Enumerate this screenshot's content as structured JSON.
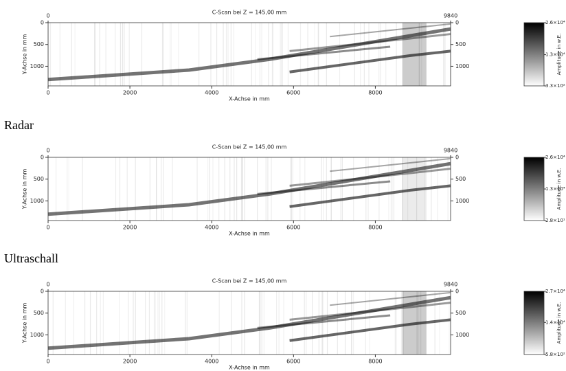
{
  "chart_data": [
    {
      "type": "heatmap",
      "title": "C-Scan bei Z = 145,00 mm",
      "xlabel": "X-Achse in mm",
      "ylabel": "Y-Achse in mm",
      "xlim": [
        0,
        9840
      ],
      "xticks": [
        0,
        2000,
        4000,
        6000,
        8000
      ],
      "x2ticks": [
        0,
        9840
      ],
      "ylim": [
        1450,
        0
      ],
      "yticks": [
        0,
        500,
        1000
      ],
      "colorbar_label": "Amplitude in w.E.",
      "colormap": [
        "#ffffff",
        "#000000"
      ],
      "clim": [
        330,
        26000
      ],
      "cticks": [
        {
          "value": 26000,
          "label": "2.6×10⁴"
        },
        {
          "value": 13000,
          "label": "1.3×10⁴"
        },
        {
          "value": 330,
          "label": "3.3×10²"
        }
      ]
    },
    {
      "type": "heatmap",
      "title": "C-Scan bei Z = 145,00 mm",
      "xlabel": "X-Achse in mm",
      "ylabel": "Y-Achse in mm",
      "xlim": [
        0,
        9840
      ],
      "xticks": [
        0,
        2000,
        4000,
        6000,
        8000
      ],
      "x2ticks": [
        0,
        9840
      ],
      "ylim": [
        1450,
        0
      ],
      "yticks": [
        0,
        500,
        1000
      ],
      "colorbar_label": "Amplitude in w.E.",
      "colormap": [
        "#ffffff",
        "#000000"
      ],
      "clim": [
        28,
        26000
      ],
      "cticks": [
        {
          "value": 26000,
          "label": "2.6×10⁴"
        },
        {
          "value": 13000,
          "label": "1.3×10⁴"
        },
        {
          "value": 28,
          "label": "2.8×10¹"
        }
      ]
    },
    {
      "type": "heatmap",
      "title": "C-Scan bei Z = 145,00 mm",
      "xlabel": "X-Achse in mm",
      "ylabel": "Y-Achse in mm",
      "xlim": [
        0,
        9840
      ],
      "xticks": [
        0,
        2000,
        4000,
        6000,
        8000
      ],
      "x2ticks": [
        0,
        9840
      ],
      "ylim": [
        1450,
        0
      ],
      "yticks": [
        0,
        500,
        1000
      ],
      "colorbar_label": "Amplitude in w.E.",
      "colormap": [
        "#ffffff",
        "#000000"
      ],
      "clim": [
        580,
        27000
      ],
      "cticks": [
        {
          "value": 27000,
          "label": "2.7×10⁴"
        },
        {
          "value": 14000,
          "label": "1.4×10⁴"
        },
        {
          "value": 580,
          "label": "5.8×10²"
        }
      ]
    }
  ],
  "captions": [
    "Radar",
    "Ultraschall"
  ]
}
